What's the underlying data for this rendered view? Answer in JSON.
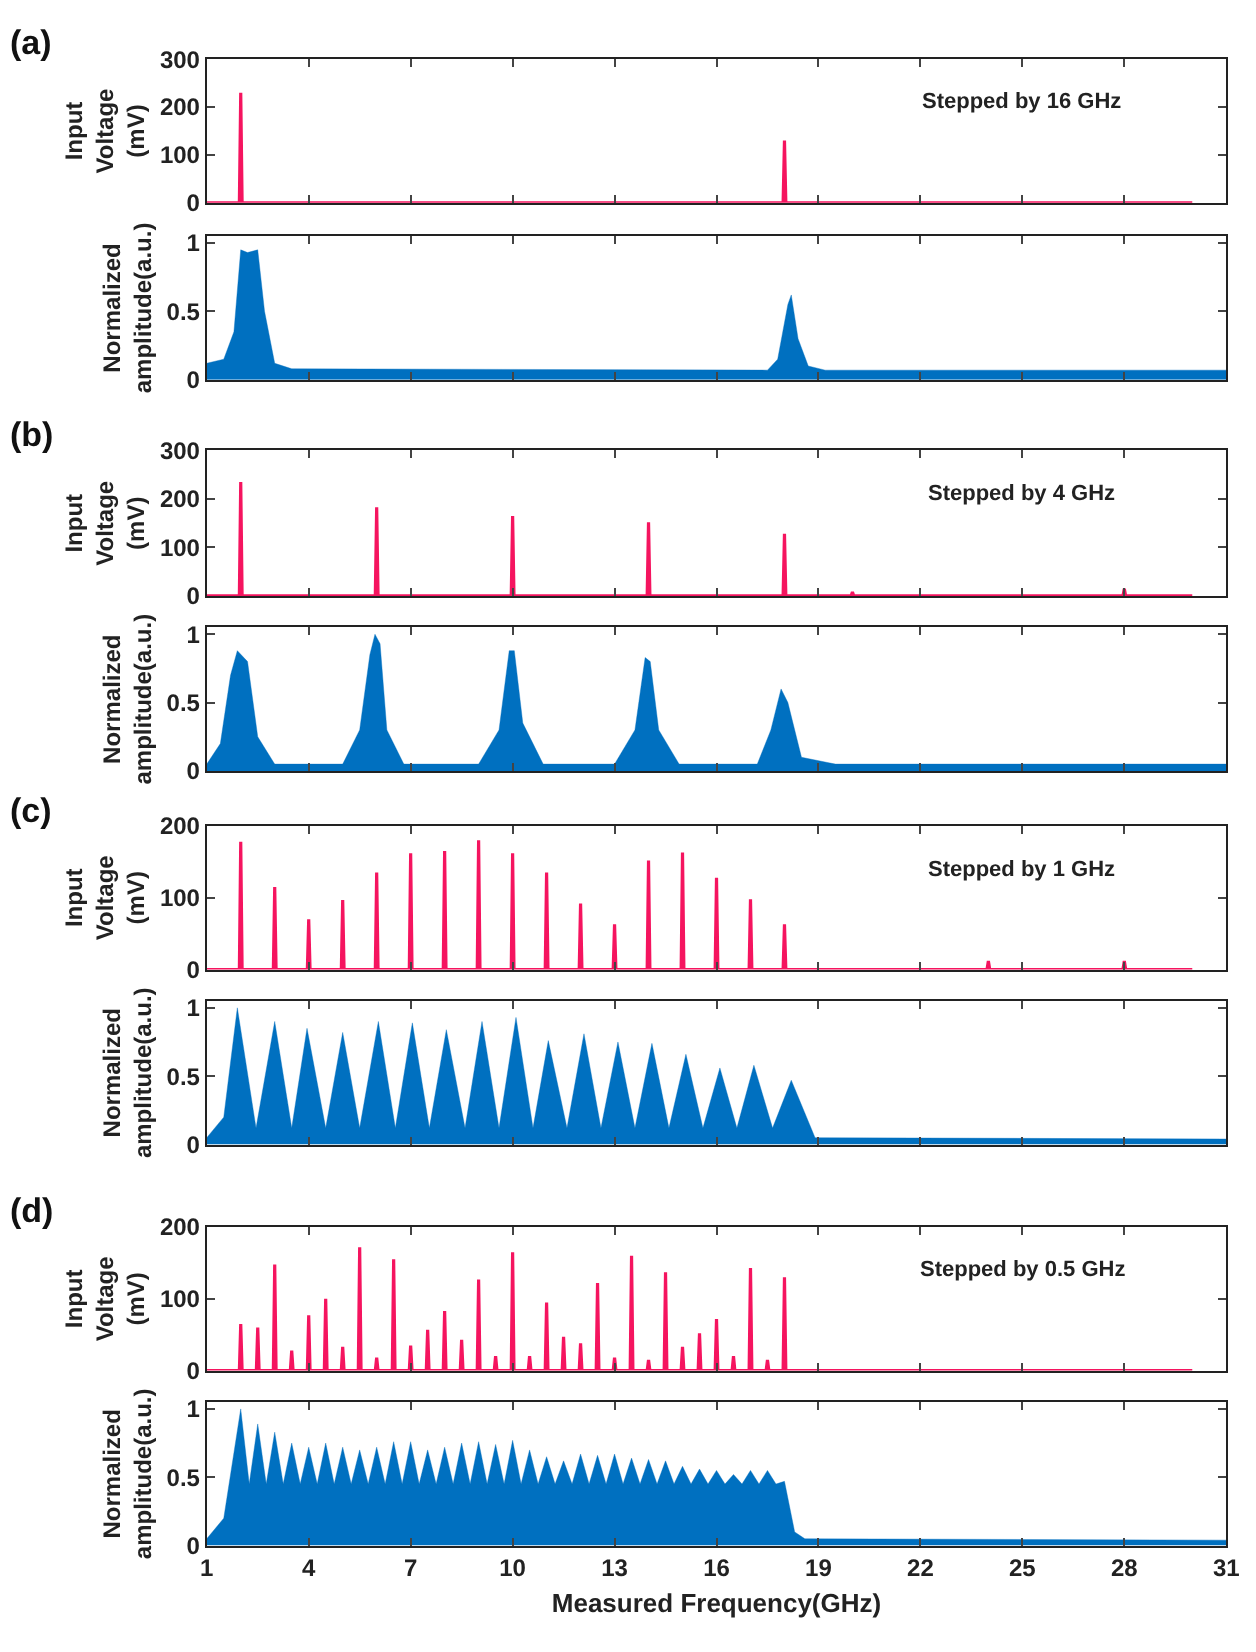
{
  "chart_data": [
    {
      "type": "line",
      "annotations": [
        "(a)",
        "Stepped by 16 GHz"
      ],
      "ylabel": "Input\nVoltage\n(mV)",
      "xlim": [
        1,
        31
      ],
      "xticks": [
        1,
        4,
        7,
        10,
        13,
        16,
        19,
        22,
        25,
        28,
        31
      ],
      "ylim": [
        0,
        300
      ],
      "yticks": [
        0,
        100,
        200,
        300
      ],
      "tick_labels": "y",
      "series": [
        {
          "color": "#f5145f",
          "x": [
            1,
            1.96,
            2,
            2.04,
            17.96,
            18,
            18.04,
            30
          ],
          "values": [
            0,
            0,
            230,
            0,
            0,
            130,
            0,
            0
          ]
        }
      ]
    },
    {
      "type": "area",
      "ylabel": "Normalized\namplitude(a.u.)",
      "xlim": [
        1,
        31
      ],
      "xticks": [
        1,
        4,
        7,
        10,
        13,
        16,
        19,
        22,
        25,
        28,
        31
      ],
      "ylim": [
        0,
        1.05
      ],
      "yticks": [
        0,
        0.5,
        1
      ],
      "tick_labels": "y",
      "series": [
        {
          "color": "#0070c0",
          "x": [
            1,
            1.5,
            1.8,
            2,
            2.2,
            2.5,
            2.7,
            3,
            3.5,
            17.5,
            17.8,
            18.1,
            18.2,
            18.4,
            18.7,
            19.2,
            31
          ],
          "values": [
            0.12,
            0.15,
            0.35,
            0.95,
            0.93,
            0.95,
            0.5,
            0.12,
            0.08,
            0.07,
            0.15,
            0.55,
            0.62,
            0.3,
            0.1,
            0.07,
            0.07
          ]
        }
      ]
    },
    {
      "type": "line",
      "annotations": [
        "(b)",
        "Stepped by 4 GHz"
      ],
      "ylabel": "Input\nVoltage\n(mV)",
      "xlim": [
        1,
        31
      ],
      "xticks": [
        1,
        4,
        7,
        10,
        13,
        16,
        19,
        22,
        25,
        28,
        31
      ],
      "ylim": [
        0,
        300
      ],
      "yticks": [
        0,
        100,
        200,
        300
      ],
      "tick_labels": "y",
      "series": [
        {
          "color": "#f5145f",
          "x": [
            1,
            1.96,
            2,
            2.04,
            5.96,
            6,
            6.04,
            9.96,
            10,
            10.04,
            13.96,
            14,
            14.04,
            17.96,
            18,
            18.04,
            19.96,
            20,
            20.04,
            27.96,
            28,
            28.04,
            30
          ],
          "values": [
            0,
            0,
            235,
            0,
            0,
            183,
            0,
            0,
            165,
            0,
            0,
            152,
            0,
            0,
            128,
            0,
            0,
            8,
            0,
            0,
            15,
            0,
            0
          ]
        }
      ]
    },
    {
      "type": "area",
      "ylabel": "Normalized\namplitude(a.u.)",
      "xlim": [
        1,
        31
      ],
      "xticks": [
        1,
        4,
        7,
        10,
        13,
        16,
        19,
        22,
        25,
        28,
        31
      ],
      "ylim": [
        0,
        1.05
      ],
      "yticks": [
        0,
        0.5,
        1
      ],
      "tick_labels": "y",
      "series": [
        {
          "color": "#0070c0",
          "x": [
            1,
            1.4,
            1.7,
            1.9,
            2.2,
            2.5,
            3,
            5,
            5.5,
            5.8,
            5.95,
            6.1,
            6.3,
            6.8,
            9,
            9.6,
            9.9,
            10.05,
            10.3,
            10.9,
            13,
            13.6,
            13.9,
            14.05,
            14.3,
            14.9,
            17.2,
            17.6,
            17.9,
            18.1,
            18.5,
            19.5,
            31
          ],
          "values": [
            0.05,
            0.2,
            0.7,
            0.88,
            0.8,
            0.25,
            0.05,
            0.05,
            0.3,
            0.85,
            1.0,
            0.93,
            0.3,
            0.05,
            0.05,
            0.3,
            0.88,
            0.88,
            0.35,
            0.05,
            0.05,
            0.3,
            0.83,
            0.8,
            0.3,
            0.05,
            0.05,
            0.3,
            0.6,
            0.5,
            0.1,
            0.05,
            0.05
          ]
        }
      ]
    },
    {
      "type": "line",
      "annotations": [
        "(c)",
        "Stepped by 1 GHz"
      ],
      "ylabel": "Input\nVoltage\n(mV)",
      "xlim": [
        1,
        31
      ],
      "xticks": [
        1,
        4,
        7,
        10,
        13,
        16,
        19,
        22,
        25,
        28,
        31
      ],
      "ylim": [
        0,
        200
      ],
      "yticks": [
        0,
        100,
        200
      ],
      "tick_labels": "y",
      "series": [
        {
          "color": "#f5145f",
          "x": [
            1,
            1.96,
            2,
            2.04,
            2.96,
            3,
            3.04,
            3.96,
            4,
            4.04,
            4.96,
            5,
            5.04,
            5.96,
            6,
            6.04,
            6.96,
            7,
            7.04,
            7.96,
            8,
            8.04,
            8.96,
            9,
            9.04,
            9.96,
            10,
            10.04,
            10.96,
            11,
            11.04,
            11.96,
            12,
            12.04,
            12.96,
            13,
            13.04,
            13.96,
            14,
            14.04,
            14.96,
            15,
            15.04,
            15.96,
            16,
            16.04,
            16.96,
            17,
            17.04,
            17.96,
            18,
            18.04,
            23.96,
            24,
            24.04,
            27.96,
            28,
            28.04,
            30
          ],
          "values": [
            0,
            0,
            178,
            0,
            0,
            115,
            0,
            0,
            70,
            0,
            0,
            97,
            0,
            0,
            135,
            0,
            0,
            162,
            0,
            0,
            165,
            0,
            0,
            180,
            0,
            0,
            162,
            0,
            0,
            135,
            0,
            0,
            92,
            0,
            0,
            63,
            0,
            0,
            152,
            0,
            0,
            163,
            0,
            0,
            128,
            0,
            0,
            98,
            0,
            0,
            63,
            0,
            0,
            12,
            0,
            0,
            12,
            0,
            0
          ]
        }
      ]
    },
    {
      "type": "area",
      "ylabel": "Normalized\namplitude(a.u.)",
      "xlim": [
        1,
        31
      ],
      "xticks": [
        1,
        4,
        7,
        10,
        13,
        16,
        19,
        22,
        25,
        28,
        31
      ],
      "ylim": [
        0,
        1.05
      ],
      "yticks": [
        0,
        0.5,
        1
      ],
      "tick_labels": "y",
      "series": [
        {
          "color": "#0070c0",
          "x": [
            1,
            1.5,
            1.9,
            2.45,
            3.0,
            3.5,
            3.95,
            4.5,
            5.0,
            5.5,
            6.05,
            6.55,
            7.05,
            7.55,
            8.05,
            8.6,
            9.1,
            9.6,
            10.1,
            10.6,
            11.05,
            11.6,
            12.1,
            12.6,
            13.1,
            13.6,
            14.1,
            14.6,
            15.1,
            15.6,
            16.1,
            16.6,
            17.1,
            17.65,
            18.2,
            18.9,
            31
          ],
          "values": [
            0.05,
            0.2,
            1.0,
            0.12,
            0.9,
            0.12,
            0.85,
            0.12,
            0.82,
            0.12,
            0.9,
            0.12,
            0.89,
            0.12,
            0.84,
            0.12,
            0.9,
            0.12,
            0.93,
            0.12,
            0.76,
            0.12,
            0.81,
            0.12,
            0.75,
            0.12,
            0.74,
            0.12,
            0.66,
            0.12,
            0.56,
            0.12,
            0.58,
            0.12,
            0.47,
            0.05,
            0.04
          ]
        }
      ]
    },
    {
      "type": "line",
      "annotations": [
        "(d)",
        "Stepped by 0.5 GHz"
      ],
      "ylabel": "Input\nVoltage\n(mV)",
      "xlim": [
        1,
        31
      ],
      "xticks": [
        1,
        4,
        7,
        10,
        13,
        16,
        19,
        22,
        25,
        28,
        31
      ],
      "ylim": [
        0,
        200
      ],
      "yticks": [
        0,
        100,
        200
      ],
      "tick_labels": "y",
      "series": [
        {
          "color": "#f5145f",
          "x": [
            1,
            1.96,
            2,
            2.04,
            2.46,
            2.5,
            2.54,
            2.96,
            3,
            3.04,
            3.46,
            3.5,
            3.54,
            3.96,
            4,
            4.04,
            4.46,
            4.5,
            4.54,
            4.96,
            5,
            5.04,
            5.46,
            5.5,
            5.54,
            5.96,
            6,
            6.04,
            6.46,
            6.5,
            6.54,
            6.96,
            7,
            7.04,
            7.46,
            7.5,
            7.54,
            7.96,
            8,
            8.04,
            8.46,
            8.5,
            8.54,
            8.96,
            9,
            9.04,
            9.46,
            9.5,
            9.54,
            9.96,
            10,
            10.04,
            10.46,
            10.5,
            10.54,
            10.96,
            11,
            11.04,
            11.46,
            11.5,
            11.54,
            11.96,
            12,
            12.04,
            12.46,
            12.5,
            12.54,
            12.96,
            13,
            13.04,
            13.46,
            13.5,
            13.54,
            13.96,
            14,
            14.04,
            14.46,
            14.5,
            14.54,
            14.96,
            15,
            15.04,
            15.46,
            15.5,
            15.54,
            15.96,
            16,
            16.04,
            16.46,
            16.5,
            16.54,
            16.96,
            17,
            17.04,
            17.46,
            17.5,
            17.54,
            17.96,
            18,
            18.04,
            30
          ],
          "values": [
            0,
            0,
            65,
            0,
            0,
            60,
            0,
            0,
            148,
            0,
            0,
            28,
            0,
            0,
            77,
            0,
            0,
            100,
            0,
            0,
            33,
            0,
            0,
            172,
            0,
            0,
            18,
            0,
            0,
            155,
            0,
            0,
            35,
            0,
            0,
            57,
            0,
            0,
            83,
            0,
            0,
            43,
            0,
            0,
            127,
            0,
            0,
            20,
            0,
            0,
            165,
            0,
            0,
            20,
            0,
            0,
            95,
            0,
            0,
            47,
            0,
            0,
            38,
            0,
            0,
            122,
            0,
            0,
            18,
            0,
            0,
            160,
            0,
            0,
            15,
            0,
            0,
            137,
            0,
            0,
            33,
            0,
            0,
            52,
            0,
            0,
            72,
            0,
            0,
            20,
            0,
            0,
            143,
            0,
            0,
            15,
            0,
            0,
            130,
            0,
            0
          ]
        }
      ]
    },
    {
      "type": "area",
      "ylabel": "Normalized\namplitude(a.u.)",
      "xlabel": "Measured Frequency(GHz)",
      "xlim": [
        1,
        31
      ],
      "xticks": [
        1,
        4,
        7,
        10,
        13,
        16,
        19,
        22,
        25,
        28,
        31
      ],
      "ylim": [
        0,
        1.05
      ],
      "yticks": [
        0,
        0.5,
        1
      ],
      "series": [
        {
          "color": "#0070c0",
          "x": [
            1,
            1.5,
            2,
            2.25,
            2.5,
            2.75,
            3,
            3.25,
            3.5,
            3.75,
            4,
            4.25,
            4.5,
            4.75,
            5,
            5.25,
            5.5,
            5.75,
            6,
            6.25,
            6.5,
            6.75,
            7,
            7.25,
            7.5,
            7.75,
            8,
            8.25,
            8.5,
            8.75,
            9,
            9.25,
            9.5,
            9.75,
            10,
            10.25,
            10.5,
            10.75,
            11,
            11.25,
            11.5,
            11.75,
            12,
            12.25,
            12.5,
            12.75,
            13,
            13.25,
            13.5,
            13.75,
            14,
            14.25,
            14.5,
            14.75,
            15,
            15.25,
            15.5,
            15.75,
            16,
            16.25,
            16.5,
            16.75,
            17,
            17.25,
            17.5,
            17.75,
            18,
            18.3,
            18.6,
            31
          ],
          "values": [
            0.05,
            0.2,
            1.0,
            0.45,
            0.89,
            0.45,
            0.83,
            0.45,
            0.75,
            0.45,
            0.72,
            0.45,
            0.75,
            0.45,
            0.72,
            0.45,
            0.7,
            0.45,
            0.72,
            0.45,
            0.76,
            0.45,
            0.76,
            0.45,
            0.7,
            0.45,
            0.72,
            0.45,
            0.75,
            0.45,
            0.76,
            0.45,
            0.74,
            0.45,
            0.77,
            0.45,
            0.7,
            0.45,
            0.65,
            0.45,
            0.62,
            0.45,
            0.67,
            0.45,
            0.66,
            0.45,
            0.67,
            0.45,
            0.64,
            0.45,
            0.63,
            0.45,
            0.62,
            0.45,
            0.58,
            0.45,
            0.56,
            0.45,
            0.55,
            0.45,
            0.52,
            0.45,
            0.55,
            0.45,
            0.55,
            0.45,
            0.47,
            0.1,
            0.05,
            0.04
          ]
        }
      ]
    }
  ]
}
